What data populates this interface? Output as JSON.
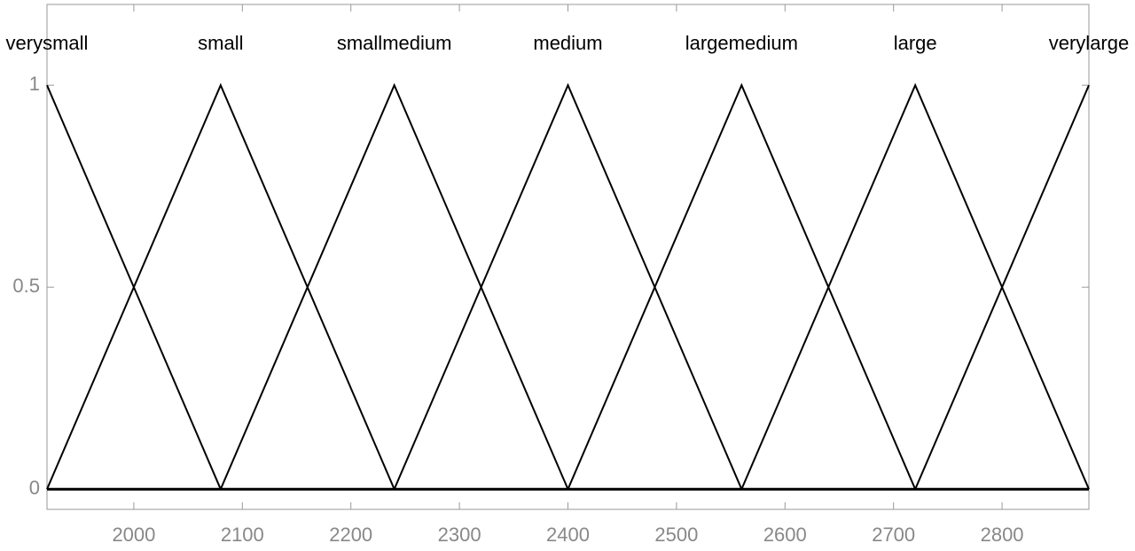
{
  "chart_data": {
    "type": "line",
    "series": [
      {
        "name": "verysmall",
        "color": "#000000",
        "x": [
          1920,
          2080
        ],
        "values": [
          1,
          0
        ]
      },
      {
        "name": "small",
        "color": "#000000",
        "x": [
          1920,
          2080,
          2240
        ],
        "values": [
          0,
          1,
          0
        ]
      },
      {
        "name": "smallmedium",
        "color": "#000000",
        "x": [
          2080,
          2240,
          2400
        ],
        "values": [
          0,
          1,
          0
        ]
      },
      {
        "name": "medium",
        "color": "#000000",
        "x": [
          2240,
          2400,
          2560
        ],
        "values": [
          0,
          1,
          0
        ]
      },
      {
        "name": "largemedium",
        "color": "#000000",
        "x": [
          2400,
          2560,
          2720
        ],
        "values": [
          0,
          1,
          0
        ]
      },
      {
        "name": "large",
        "color": "#000000",
        "x": [
          2560,
          2720,
          2880
        ],
        "values": [
          0,
          1,
          0
        ]
      },
      {
        "name": "verylarge",
        "color": "#000000",
        "x": [
          2720,
          2880
        ],
        "values": [
          0,
          1
        ]
      }
    ],
    "xlim": [
      1920,
      2880
    ],
    "xticks": [
      2000,
      2100,
      2200,
      2300,
      2400,
      2500,
      2600,
      2700,
      2800
    ],
    "ylim": [
      -0.05,
      1.2
    ],
    "yticks": [
      0,
      0.5,
      1
    ]
  }
}
